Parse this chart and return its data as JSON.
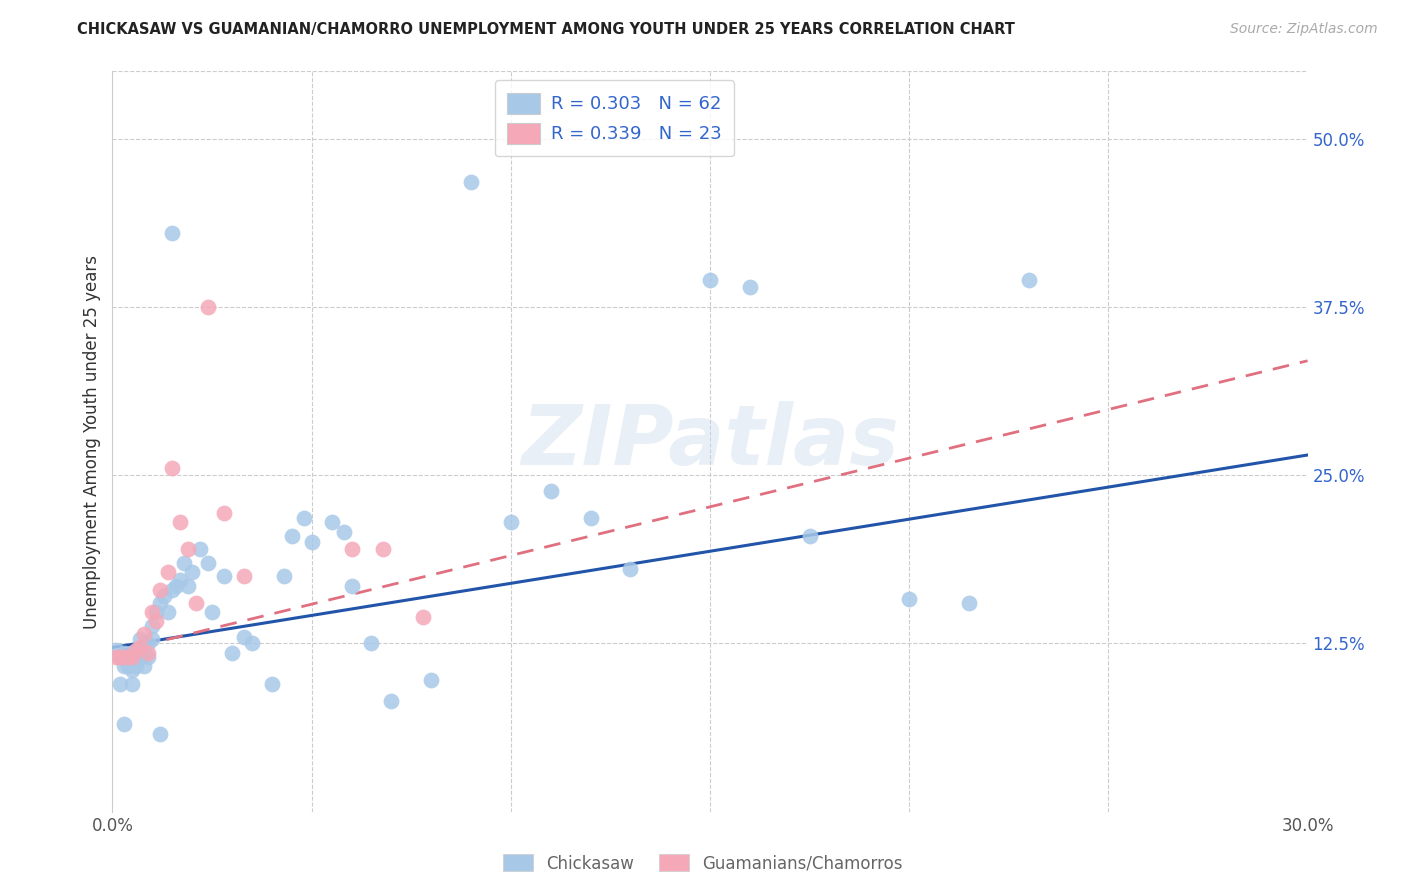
{
  "title": "CHICKASAW VS GUAMANIAN/CHAMORRO UNEMPLOYMENT AMONG YOUTH UNDER 25 YEARS CORRELATION CHART",
  "source": "Source: ZipAtlas.com",
  "ylabel_label": "Unemployment Among Youth under 25 years",
  "xlim": [
    0.0,
    0.3
  ],
  "ylim": [
    0.0,
    0.55
  ],
  "ytick_positions": [
    0.0,
    0.125,
    0.25,
    0.375,
    0.5
  ],
  "ytick_labels_right": [
    "",
    "12.5%",
    "25.0%",
    "37.5%",
    "50.0%"
  ],
  "xtick_positions": [
    0.0,
    0.05,
    0.1,
    0.15,
    0.2,
    0.25,
    0.3
  ],
  "xtick_labels": [
    "0.0%",
    "",
    "",
    "",
    "",
    "",
    "30.0%"
  ],
  "chickasaw_color": "#a8c8e8",
  "guamanian_color": "#f4a8b8",
  "chickasaw_line_color": "#2255aa",
  "guamanian_line_color": "#e07080",
  "watermark": "ZIPatlas",
  "legend1_text": "R = 0.303   N = 62",
  "legend2_text": "R = 0.339   N = 23",
  "legend_color": "#3366cc",
  "bottom_label1": "Chickasaw",
  "bottom_label2": "Guamanians/Chamorros",
  "chickasaw_x": [
    0.001,
    0.002,
    0.002,
    0.003,
    0.003,
    0.003,
    0.004,
    0.004,
    0.005,
    0.005,
    0.005,
    0.006,
    0.006,
    0.007,
    0.007,
    0.008,
    0.008,
    0.009,
    0.009,
    0.01,
    0.01,
    0.011,
    0.012,
    0.012,
    0.013,
    0.014,
    0.015,
    0.015,
    0.016,
    0.017,
    0.018,
    0.019,
    0.02,
    0.022,
    0.024,
    0.025,
    0.028,
    0.03,
    0.033,
    0.035,
    0.04,
    0.043,
    0.045,
    0.048,
    0.05,
    0.055,
    0.058,
    0.06,
    0.065,
    0.07,
    0.08,
    0.09,
    0.1,
    0.11,
    0.12,
    0.13,
    0.15,
    0.16,
    0.175,
    0.2,
    0.215,
    0.23
  ],
  "chickasaw_y": [
    0.12,
    0.095,
    0.115,
    0.108,
    0.118,
    0.065,
    0.115,
    0.108,
    0.118,
    0.105,
    0.095,
    0.118,
    0.108,
    0.128,
    0.115,
    0.118,
    0.108,
    0.125,
    0.115,
    0.138,
    0.128,
    0.148,
    0.058,
    0.155,
    0.16,
    0.148,
    0.165,
    0.43,
    0.168,
    0.172,
    0.185,
    0.168,
    0.178,
    0.195,
    0.185,
    0.148,
    0.175,
    0.118,
    0.13,
    0.125,
    0.095,
    0.175,
    0.205,
    0.218,
    0.2,
    0.215,
    0.208,
    0.168,
    0.125,
    0.082,
    0.098,
    0.468,
    0.215,
    0.238,
    0.218,
    0.18,
    0.395,
    0.39,
    0.205,
    0.158,
    0.155,
    0.395
  ],
  "guamanian_x": [
    0.001,
    0.002,
    0.003,
    0.004,
    0.005,
    0.006,
    0.007,
    0.008,
    0.009,
    0.01,
    0.011,
    0.012,
    0.014,
    0.015,
    0.017,
    0.019,
    0.021,
    0.024,
    0.028,
    0.033,
    0.06,
    0.068,
    0.078
  ],
  "guamanian_y": [
    0.115,
    0.115,
    0.115,
    0.115,
    0.115,
    0.12,
    0.122,
    0.132,
    0.118,
    0.148,
    0.142,
    0.165,
    0.178,
    0.255,
    0.215,
    0.195,
    0.155,
    0.375,
    0.222,
    0.175,
    0.195,
    0.195,
    0.145
  ],
  "chickasaw_trendline_x": [
    0.0,
    0.3
  ],
  "chickasaw_trendline_y": [
    0.122,
    0.265
  ],
  "guamanian_trendline_x": [
    0.0,
    0.3
  ],
  "guamanian_trendline_y": [
    0.118,
    0.335
  ]
}
